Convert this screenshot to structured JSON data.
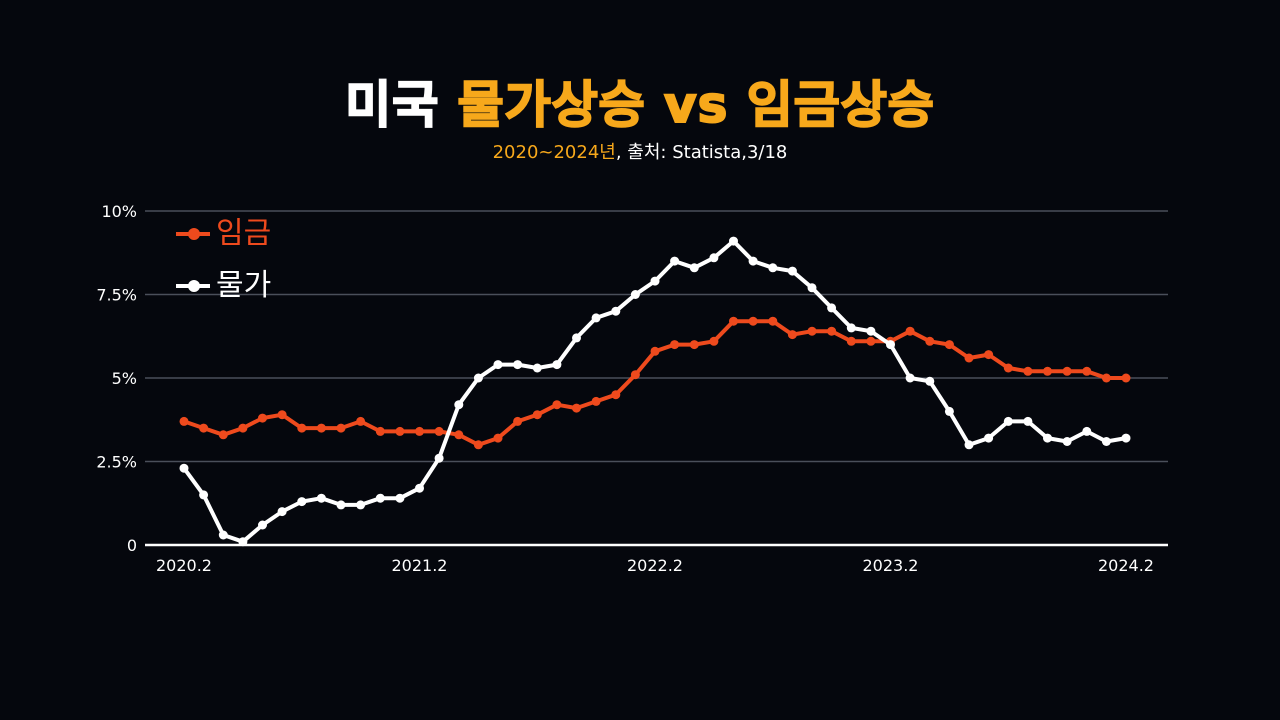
{
  "title": {
    "part1": "미국",
    "part2": "물가상승 vs 임금상승"
  },
  "subtitle": {
    "range": "2020~2024년",
    "source": ", 출처: Statista,3/18"
  },
  "colors": {
    "background": "#05070d",
    "wage": "#ee4a1d",
    "inflation": "#ffffff",
    "accent": "#f7a81b",
    "grid": "#4a4f5a"
  },
  "chart_data": {
    "type": "line",
    "ylim": [
      0,
      10
    ],
    "yticks": [
      {
        "value": 10,
        "label": "10%"
      },
      {
        "value": 7.5,
        "label": "7.5%"
      },
      {
        "value": 5,
        "label": "5%"
      },
      {
        "value": 2.5,
        "label": "2.5%"
      },
      {
        "value": 0,
        "label": "0"
      }
    ],
    "xticks": [
      "2020.2",
      "2021.2",
      "2022.2",
      "2023.2",
      "2024.2"
    ],
    "grid": true,
    "legend_position": "top-left",
    "series": [
      {
        "name": "임금",
        "color": "#ee4a1d",
        "values": [
          3.7,
          3.5,
          3.3,
          3.5,
          3.8,
          3.9,
          3.5,
          3.5,
          3.5,
          3.7,
          3.4,
          3.4,
          3.4,
          3.4,
          3.3,
          3.0,
          3.2,
          3.7,
          3.9,
          4.2,
          4.1,
          4.3,
          4.5,
          5.1,
          5.8,
          6.0,
          6.0,
          6.1,
          6.7,
          6.7,
          6.7,
          6.3,
          6.4,
          6.4,
          6.1,
          6.1,
          6.1,
          6.4,
          6.1,
          6.0,
          5.6,
          5.7,
          5.3,
          5.2,
          5.2,
          5.2,
          5.2,
          5.0,
          5.0
        ]
      },
      {
        "name": "물가",
        "color": "#ffffff",
        "values": [
          2.3,
          1.5,
          0.3,
          0.1,
          0.6,
          1.0,
          1.3,
          1.4,
          1.2,
          1.2,
          1.4,
          1.4,
          1.7,
          2.6,
          4.2,
          5.0,
          5.4,
          5.4,
          5.3,
          5.4,
          6.2,
          6.8,
          7.0,
          7.5,
          7.9,
          8.5,
          8.3,
          8.6,
          9.1,
          8.5,
          8.3,
          8.2,
          7.7,
          7.1,
          6.5,
          6.4,
          6.0,
          5.0,
          4.9,
          4.0,
          3.0,
          3.2,
          3.7,
          3.7,
          3.2,
          3.1,
          3.4,
          3.1,
          3.2
        ]
      }
    ]
  }
}
